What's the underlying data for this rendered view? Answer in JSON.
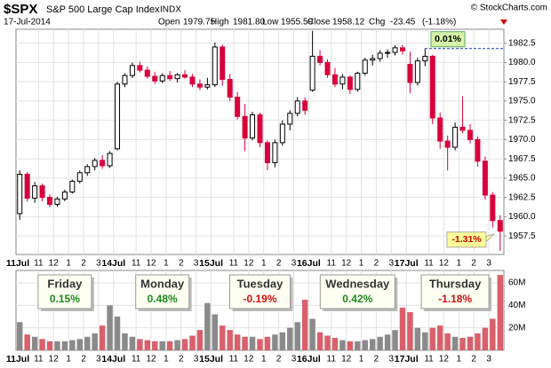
{
  "chart_data": {
    "type": "candlestick",
    "symbol": "$SPX",
    "name": "S&P 500 Large Cap Index",
    "exchange": "INDX",
    "source": "© StockCharts.com",
    "date": "17-Jul-2014",
    "stats": [
      {
        "name": "Open",
        "value": 1979.75
      },
      {
        "name": "High",
        "value": 1981.8,
        "value_label": "1981.80"
      },
      {
        "name": "Low",
        "value": 1955.59
      },
      {
        "name": "Close",
        "value": 1958.12
      },
      {
        "name": "Chg",
        "value": -23.45,
        "pct": "(-1.18%)"
      }
    ],
    "categories": [
      "11Jul",
      null,
      null,
      "11",
      null,
      "12",
      null,
      "1",
      null,
      "2",
      null,
      "3",
      null,
      "14Jul",
      null,
      null,
      "11",
      null,
      "12",
      null,
      "1",
      null,
      "2",
      null,
      "3",
      null,
      "15Jul",
      null,
      null,
      "11",
      null,
      "12",
      null,
      "1",
      null,
      "2",
      null,
      "3",
      null,
      "16Jul",
      null,
      null,
      "11",
      null,
      "12",
      null,
      "1",
      null,
      "2",
      null,
      "3",
      null,
      "17Jul",
      null,
      null,
      "11",
      null,
      "12",
      null,
      "1",
      null,
      "2",
      null,
      "3",
      null
    ],
    "candles": [
      [
        1960.4,
        1966.0,
        1959.6,
        1965.5
      ],
      [
        1965.5,
        1965.8,
        1962.0,
        1962.4
      ],
      [
        1962.4,
        1964.5,
        1961.8,
        1964.0
      ],
      [
        1964.0,
        1964.3,
        1962.0,
        1962.5
      ],
      [
        1962.5,
        1962.9,
        1961.2,
        1961.6
      ],
      [
        1961.6,
        1962.6,
        1961.3,
        1962.3
      ],
      [
        1962.3,
        1963.5,
        1962.0,
        1963.2
      ],
      [
        1963.2,
        1964.8,
        1963.0,
        1964.6
      ],
      [
        1964.6,
        1966.0,
        1964.3,
        1965.7
      ],
      [
        1965.7,
        1966.8,
        1965.3,
        1966.5
      ],
      [
        1966.5,
        1967.6,
        1966.0,
        1967.3
      ],
      [
        1967.3,
        1968.0,
        1966.2,
        1966.6
      ],
      [
        1966.6,
        1968.5,
        1966.3,
        1968.2
      ],
      [
        1968.8,
        1977.5,
        1968.6,
        1977.2
      ],
      [
        1977.2,
        1978.6,
        1976.8,
        1978.3
      ],
      [
        1978.3,
        1980.0,
        1978.0,
        1979.6
      ],
      [
        1979.6,
        1980.1,
        1978.7,
        1979.0
      ],
      [
        1979.0,
        1979.5,
        1977.9,
        1978.2
      ],
      [
        1978.2,
        1978.8,
        1977.2,
        1977.6
      ],
      [
        1977.6,
        1978.6,
        1977.3,
        1978.3
      ],
      [
        1978.3,
        1978.9,
        1977.6,
        1977.9
      ],
      [
        1977.9,
        1978.6,
        1977.4,
        1978.4
      ],
      [
        1978.4,
        1979.0,
        1977.9,
        1978.1
      ],
      [
        1978.1,
        1978.5,
        1976.8,
        1977.2
      ],
      [
        1977.2,
        1977.8,
        1976.4,
        1976.8
      ],
      [
        1976.8,
        1978.0,
        1976.5,
        1977.1
      ],
      [
        1977.1,
        1982.6,
        1976.8,
        1982.0
      ],
      [
        1982.0,
        1982.3,
        1977.0,
        1977.8
      ],
      [
        1977.8,
        1978.5,
        1975.0,
        1975.5
      ],
      [
        1975.5,
        1976.2,
        1972.6,
        1973.0
      ],
      [
        1973.0,
        1974.6,
        1968.5,
        1970.2
      ],
      [
        1970.2,
        1973.6,
        1969.9,
        1973.2
      ],
      [
        1973.2,
        1973.5,
        1969.0,
        1969.6
      ],
      [
        1969.6,
        1969.9,
        1966.0,
        1967.0
      ],
      [
        1967.0,
        1970.0,
        1966.4,
        1969.6
      ],
      [
        1969.6,
        1972.5,
        1969.2,
        1972.0
      ],
      [
        1972.0,
        1973.8,
        1971.2,
        1973.4
      ],
      [
        1973.4,
        1975.5,
        1973.0,
        1975.0
      ],
      [
        1975.0,
        1975.5,
        1973.2,
        1973.8
      ],
      [
        1976.4,
        1984.1,
        1976.2,
        1980.8
      ],
      [
        1980.8,
        1981.6,
        1979.6,
        1980.0
      ],
      [
        1980.0,
        1980.4,
        1978.0,
        1978.4
      ],
      [
        1978.4,
        1979.3,
        1976.8,
        1977.2
      ],
      [
        1977.2,
        1978.5,
        1976.5,
        1978.1
      ],
      [
        1978.1,
        1978.3,
        1975.9,
        1976.5
      ],
      [
        1976.5,
        1978.8,
        1976.2,
        1978.6
      ],
      [
        1978.6,
        1980.6,
        1978.3,
        1980.3
      ],
      [
        1980.3,
        1981.0,
        1979.6,
        1980.5
      ],
      [
        1980.5,
        1981.6,
        1980.1,
        1981.2
      ],
      [
        1981.2,
        1981.7,
        1980.6,
        1981.3
      ],
      [
        1981.3,
        1982.2,
        1980.9,
        1981.9
      ],
      [
        1981.9,
        1982.3,
        1981.0,
        1981.5
      ],
      [
        1979.75,
        1981.4,
        1976.0,
        1977.4
      ],
      [
        1977.4,
        1980.6,
        1977.0,
        1980.2
      ],
      [
        1980.2,
        1981.8,
        1979.5,
        1980.8
      ],
      [
        1980.8,
        1981.0,
        1972.0,
        1972.8
      ],
      [
        1972.8,
        1973.5,
        1968.8,
        1969.8
      ],
      [
        1969.8,
        1970.5,
        1966.0,
        1969.0
      ],
      [
        1969.0,
        1972.2,
        1968.6,
        1971.6
      ],
      [
        1971.6,
        1975.6,
        1970.8,
        1971.2
      ],
      [
        1971.2,
        1972.0,
        1969.5,
        1970.0
      ],
      [
        1970.0,
        1970.4,
        1966.5,
        1967.2
      ],
      [
        1967.2,
        1967.8,
        1962.2,
        1962.8
      ],
      [
        1962.8,
        1963.2,
        1958.6,
        1959.5
      ],
      [
        1959.5,
        1960.2,
        1955.59,
        1958.12
      ]
    ],
    "up_color": "#000000",
    "down_color": "#d8003c",
    "ylim": [
      1955.1,
      1984.3
    ],
    "yticks": [
      1957.5,
      {
        "value": 1960,
        "label": "1960.0"
      },
      1962.5,
      {
        "value": 1965,
        "label": "1965.0"
      },
      1967.5,
      {
        "value": 1970,
        "label": "1970.0"
      },
      1972.5,
      {
        "value": 1975,
        "label": "1975.0"
      },
      1977.5,
      {
        "value": 1980,
        "label": "1980.0"
      },
      1982.5
    ],
    "grid": true,
    "volume": [
      25,
      14,
      12,
      10,
      8,
      8,
      8,
      9,
      10,
      12,
      15,
      22,
      40,
      30,
      15,
      12,
      10,
      9,
      8,
      8,
      8,
      9,
      10,
      13,
      18,
      42,
      32,
      22,
      18,
      14,
      12,
      12,
      10,
      12,
      14,
      16,
      20,
      25,
      45,
      28,
      16,
      13,
      11,
      9,
      8,
      8,
      9,
      10,
      12,
      14,
      18,
      38,
      34,
      20,
      16,
      20,
      22,
      15,
      12,
      11,
      12,
      15,
      20,
      28,
      67
    ],
    "volume_up_color": "#8a8a8a",
    "volume_down_color": "#d9606a",
    "volume_ylim": [
      0,
      71
    ],
    "volume_yticks": [
      {
        "value": 20,
        "label": "20M"
      },
      {
        "value": 40,
        "label": "40M"
      },
      {
        "value": 60,
        "label": "60M"
      }
    ],
    "day_boxes": [
      {
        "day": "Friday",
        "change": "0.15%",
        "color": "#1a8a1a"
      },
      {
        "day": "Monday",
        "change": "0.48%",
        "color": "#1a8a1a"
      },
      {
        "day": "Tuesday",
        "change": "-0.19%",
        "color": "#cc1111"
      },
      {
        "day": "Wednesday",
        "change": "0.42%",
        "color": "#1a8a1a"
      },
      {
        "day": "Thursday",
        "change": "-1.18%",
        "color": "#cc1111"
      }
    ],
    "annotations": [
      {
        "text": "0.01%",
        "fill": "#d6f5a8"
      },
      {
        "text": "-1.31%",
        "fill": "#ffff99"
      }
    ]
  }
}
